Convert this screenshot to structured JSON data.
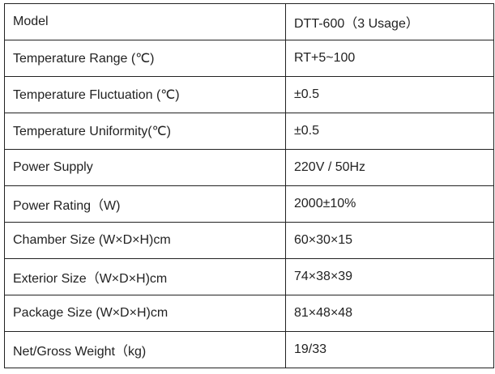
{
  "rows": [
    {
      "label": "Model",
      "value": "DTT-600（3 Usage）"
    },
    {
      "label": "Temperature Range (℃)",
      "value": "RT+5~100"
    },
    {
      "label": "Temperature Fluctuation (℃)",
      "value": "±0.5"
    },
    {
      "label": "Temperature Uniformity(℃)",
      "value": "±0.5"
    },
    {
      "label": "Power Supply",
      "value": "220V / 50Hz"
    },
    {
      "label": "Power Rating（W)",
      "value": "2000±10%"
    },
    {
      "label": "Chamber Size (W×D×H)cm",
      "value": "60×30×15"
    },
    {
      "label": "Exterior Size（W×D×H)cm",
      "value": "74×38×39"
    },
    {
      "label": "Package Size (W×D×H)cm",
      "value": "81×48×48"
    },
    {
      "label": "Net/Gross Weight（kg)",
      "value": "19/33"
    }
  ]
}
